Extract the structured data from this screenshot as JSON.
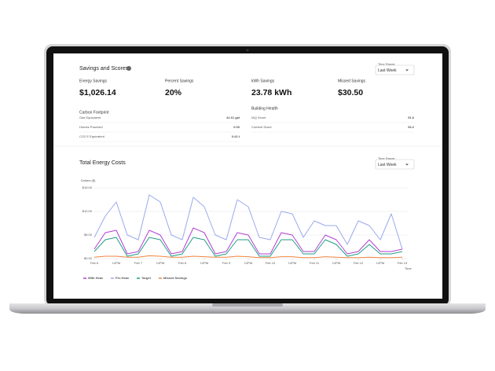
{
  "savings": {
    "title": "Savings and Scores",
    "time_range_label": "Time Range",
    "time_range_value": "Last Week",
    "metrics": [
      {
        "label": "Energy Savings",
        "value": "$1,026.14"
      },
      {
        "label": "Percent Savings",
        "value": "20%"
      },
      {
        "label": "kWh Savings",
        "value": "23.78 kWh"
      },
      {
        "label": "Missed Savings",
        "value": "$30.50"
      }
    ],
    "carbon": {
      "title": "Carbon Footprint",
      "rows": [
        [
          "Gas Equivalent",
          "41.61 gal"
        ],
        [
          "Homes Powered",
          "0.00"
        ],
        [
          "CO2 E Equivalent",
          "0.42 t"
        ]
      ]
    },
    "building": {
      "title": "Building Health",
      "rows": [
        [
          "IAQ Score",
          "91.6"
        ],
        [
          "Comfort Score",
          "94.2"
        ]
      ]
    }
  },
  "costs": {
    "time_range_label": "Time Range",
    "time_range_value": "Last Week"
  },
  "chart_data": {
    "type": "line",
    "title": "Total Energy Costs",
    "ylabel": "Dollars ($)",
    "xlabel": "Time",
    "x": [
      0,
      0.25,
      0.5,
      0.75,
      1,
      1.25,
      1.5,
      1.75,
      2,
      2.25,
      2.5,
      2.75,
      3,
      3.25,
      3.5,
      3.75,
      4,
      4.25,
      4.5,
      4.75,
      5,
      5.25,
      5.5,
      5.75,
      6,
      6.25,
      6.5,
      6.75,
      7
    ],
    "xlim": [
      0,
      7
    ],
    "xticks": [
      {
        "value": 0,
        "label": "Feb 6"
      },
      {
        "value": 0.5,
        "label": "12PM"
      },
      {
        "value": 1,
        "label": "Feb 7"
      },
      {
        "value": 1.5,
        "label": "12PM"
      },
      {
        "value": 2,
        "label": "Feb 8"
      },
      {
        "value": 2.5,
        "label": "12PM"
      },
      {
        "value": 3,
        "label": "Feb 9"
      },
      {
        "value": 3.5,
        "label": "12PM"
      },
      {
        "value": 4,
        "label": "Feb 10"
      },
      {
        "value": 4.5,
        "label": "12PM"
      },
      {
        "value": 5,
        "label": "Feb 11"
      },
      {
        "value": 5.5,
        "label": "12PM"
      },
      {
        "value": 6,
        "label": "Feb 12"
      },
      {
        "value": 6.5,
        "label": "12PM"
      },
      {
        "value": 7,
        "label": "Feb 13"
      }
    ],
    "ylim": [
      0,
      15
    ],
    "yticks": [
      {
        "value": 0,
        "label": "$0.00"
      },
      {
        "value": 5,
        "label": "$5.00"
      },
      {
        "value": 10,
        "label": "$10.00"
      },
      {
        "value": 15,
        "label": "$15.00"
      }
    ],
    "grid": true,
    "series": [
      {
        "name": "With Hvac",
        "color": "#b23fd6",
        "values": [
          2,
          5.5,
          6,
          1,
          1.5,
          6,
          5,
          1,
          1.5,
          6.5,
          5.5,
          1,
          1.5,
          5.5,
          5,
          1,
          1,
          5.5,
          5,
          1.5,
          1.5,
          5,
          4,
          1,
          1.5,
          4,
          1.5,
          1.5,
          2
        ]
      },
      {
        "name": "Pre-Hvac",
        "color": "#9aa9ee",
        "values": [
          4.5,
          9,
          12,
          5,
          4,
          13.5,
          12,
          5,
          4,
          13,
          11,
          5,
          4,
          12.5,
          11,
          4.5,
          4,
          10,
          9.5,
          4.5,
          8,
          7,
          7,
          3,
          8,
          7,
          4,
          9.5,
          2
        ]
      },
      {
        "name": "Target",
        "color": "#1f9e82",
        "values": [
          1.5,
          4,
          4.5,
          0.5,
          1,
          4.5,
          4,
          0.5,
          1,
          4.5,
          4,
          0.5,
          1,
          4,
          4,
          0.5,
          0.5,
          4,
          4,
          1,
          1,
          4,
          3,
          0.5,
          1,
          3,
          1,
          1,
          1.5
        ]
      },
      {
        "name": "Missed Savings",
        "color": "#f0843f",
        "values": [
          0.3,
          0.5,
          0.5,
          0.3,
          0.3,
          0.6,
          0.5,
          0.3,
          0.3,
          0.5,
          0.4,
          0.3,
          0.3,
          0.5,
          0.4,
          0.2,
          0.2,
          0.4,
          0.4,
          0.2,
          0.2,
          0.4,
          0.3,
          0.2,
          0.2,
          0.3,
          0.2,
          0.2,
          0.3
        ]
      }
    ]
  }
}
